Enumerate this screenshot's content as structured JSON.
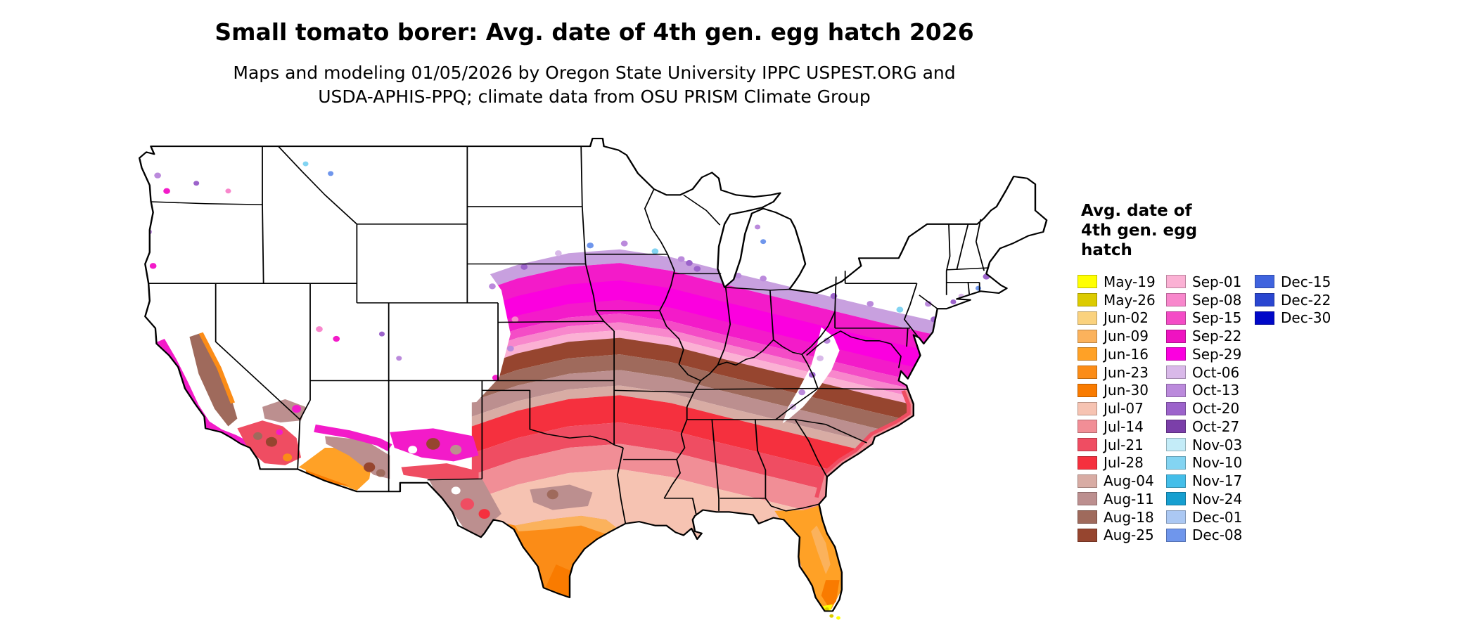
{
  "title": "Small tomato borer: Avg. date of 4th gen. egg hatch 2026",
  "subtitle": {
    "line1": "Maps and modeling 01/05/2026 by Oregon State University IPPC USPEST.ORG and",
    "line2": "USDA-APHIS-PPQ; climate data from OSU PRISM Climate Group"
  },
  "map": {
    "region": "Contiguous United States",
    "type": "choropleth of average date of 4th generation egg hatch",
    "no_data_color": "#FFFFFF",
    "state_border_color": "#000000"
  },
  "legend": {
    "title_lines": [
      "Avg. date of",
      "4th gen. egg",
      "hatch"
    ],
    "columns": [
      [
        {
          "label": "May-19",
          "color": "#FFFF00"
        },
        {
          "label": "May-26",
          "color": "#DCCB00"
        },
        {
          "label": "Jun-02",
          "color": "#FAD27E"
        },
        {
          "label": "Jun-09",
          "color": "#FBB25C"
        },
        {
          "label": "Jun-16",
          "color": "#FFA126"
        },
        {
          "label": "Jun-23",
          "color": "#FB8C17"
        },
        {
          "label": "Jun-30",
          "color": "#F97B00"
        },
        {
          "label": "Jul-07",
          "color": "#F6C3B2"
        },
        {
          "label": "Jul-14",
          "color": "#F18E96"
        },
        {
          "label": "Jul-21",
          "color": "#EF4D62"
        },
        {
          "label": "Jul-28",
          "color": "#F5303E"
        },
        {
          "label": "Aug-04",
          "color": "#D8ACA4"
        },
        {
          "label": "Aug-11",
          "color": "#BC8F8F"
        },
        {
          "label": "Aug-18",
          "color": "#9F6A5C"
        },
        {
          "label": "Aug-25",
          "color": "#96452F"
        }
      ],
      [
        {
          "label": "Sep-01",
          "color": "#FBB1D4"
        },
        {
          "label": "Sep-08",
          "color": "#F887CC"
        },
        {
          "label": "Sep-15",
          "color": "#F44CC6"
        },
        {
          "label": "Sep-22",
          "color": "#EF13C1"
        },
        {
          "label": "Sep-29",
          "color": "#FB00DF"
        },
        {
          "label": "Oct-06",
          "color": "#D9B9E9"
        },
        {
          "label": "Oct-13",
          "color": "#BB8ADC"
        },
        {
          "label": "Oct-20",
          "color": "#9C63CB"
        },
        {
          "label": "Oct-27",
          "color": "#7B3FA9"
        },
        {
          "label": "Nov-03",
          "color": "#C4ECF8"
        },
        {
          "label": "Nov-10",
          "color": "#83D4F2"
        },
        {
          "label": "Nov-17",
          "color": "#44BEE9"
        },
        {
          "label": "Nov-24",
          "color": "#169FD0"
        },
        {
          "label": "Dec-01",
          "color": "#ABC8F3"
        },
        {
          "label": "Dec-08",
          "color": "#6F96EC"
        }
      ],
      [
        {
          "label": "Dec-15",
          "color": "#3F63DE"
        },
        {
          "label": "Dec-22",
          "color": "#2A46D0"
        },
        {
          "label": "Dec-30",
          "color": "#0008C8"
        }
      ]
    ]
  }
}
